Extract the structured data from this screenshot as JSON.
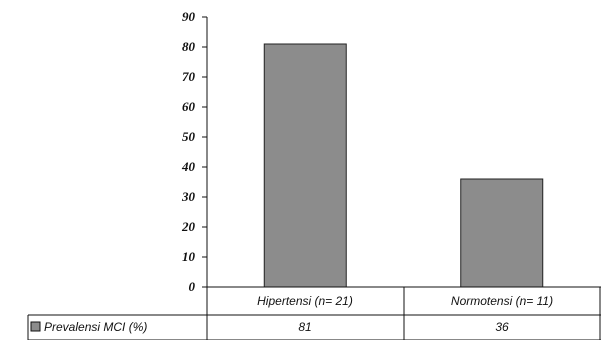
{
  "chart_data": {
    "type": "bar",
    "title": "",
    "xlabel": "",
    "ylabel": "",
    "ylim": [
      0,
      90
    ],
    "yticks": [
      0,
      10,
      20,
      30,
      40,
      50,
      60,
      70,
      80,
      90
    ],
    "grid": false,
    "legend": "data-table-left",
    "categories": [
      "Hipertensi (n= 21)",
      "Normotensi (n= 11)"
    ],
    "series": [
      {
        "name": "Prevalensi MCI (%)",
        "values": [
          81,
          36
        ],
        "color": "#8c8c8c"
      }
    ],
    "table_values": [
      "81",
      "36"
    ]
  }
}
